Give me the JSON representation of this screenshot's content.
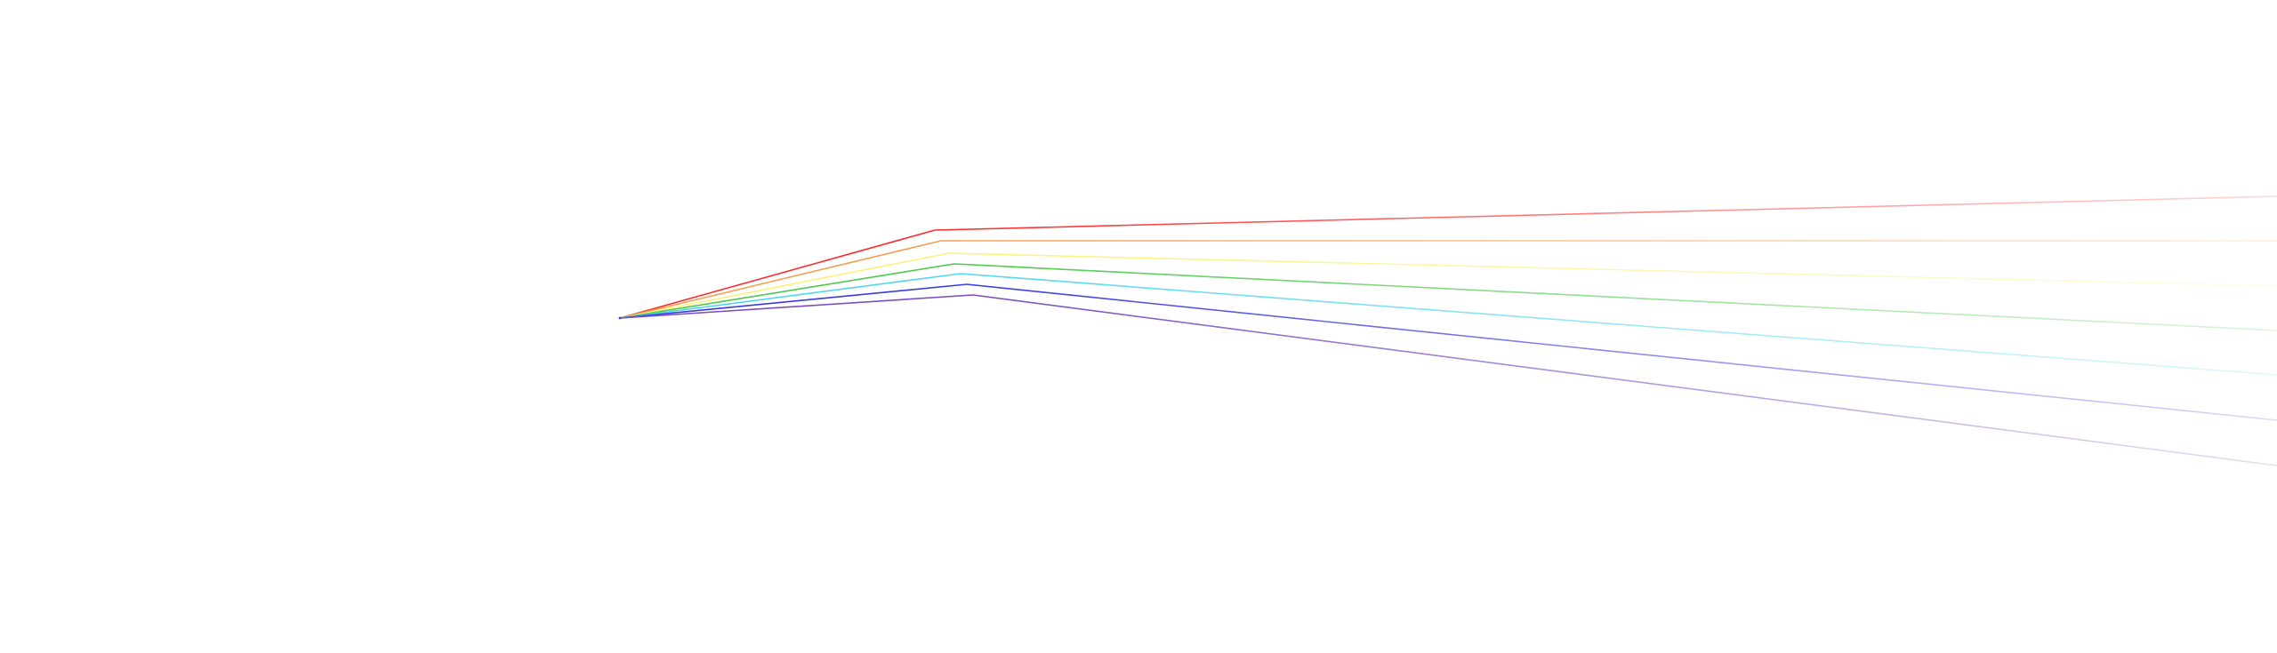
{
  "illustration": {
    "rays": [
      {
        "name": "red",
        "color": "#ff2a2a"
      },
      {
        "name": "orange",
        "color": "#f5a050"
      },
      {
        "name": "yellow",
        "color": "#fff07a"
      },
      {
        "name": "green",
        "color": "#4cc94c"
      },
      {
        "name": "cyan",
        "color": "#4fd7f0"
      },
      {
        "name": "blue",
        "color": "#3a3adf"
      },
      {
        "name": "violet",
        "color": "#7a4fbf"
      }
    ],
    "fade_to": "#ffffff"
  }
}
